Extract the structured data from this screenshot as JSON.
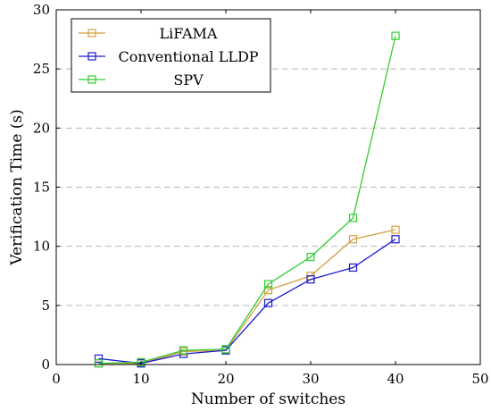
{
  "chart_data": {
    "type": "line",
    "xlabel": "Number of switches",
    "ylabel": "Verification Time (s)",
    "xlim": [
      0,
      50
    ],
    "ylim": [
      0,
      30
    ],
    "xticks": [
      0,
      10,
      20,
      30,
      40,
      50
    ],
    "yticks": [
      0,
      5,
      10,
      15,
      20,
      25,
      30
    ],
    "grid": "horizontal dashed",
    "legend_position": "top-left",
    "marker": "square",
    "x": [
      5,
      10,
      15,
      20,
      25,
      30,
      35,
      40
    ],
    "series": [
      {
        "name": "LiFAMA",
        "color": "#d4a040",
        "values": [
          0.1,
          0.1,
          1.1,
          1.2,
          6.3,
          7.5,
          10.6,
          11.4
        ]
      },
      {
        "name": "Conventional LLDP",
        "color": "#1a1acc",
        "values": [
          0.5,
          0.1,
          0.9,
          1.2,
          5.2,
          7.2,
          8.2,
          10.6
        ]
      },
      {
        "name": "SPV",
        "color": "#33cc33",
        "values": [
          0.1,
          0.2,
          1.2,
          1.3,
          6.8,
          9.1,
          12.4,
          27.8
        ]
      }
    ]
  }
}
